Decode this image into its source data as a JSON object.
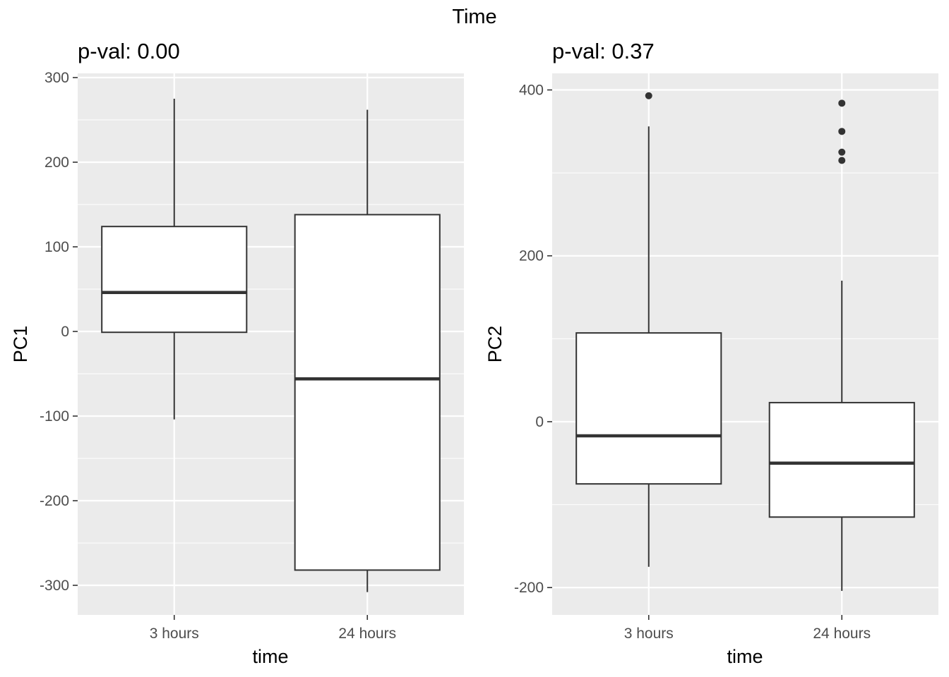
{
  "figure": {
    "title": "Time"
  },
  "chart_data": [
    {
      "type": "box",
      "title": "p-val: 0.00",
      "xlabel": "time",
      "ylabel": "PC1",
      "ylim": [
        -335,
        305
      ],
      "yticks": [
        300,
        200,
        100,
        0,
        -100,
        -200,
        -300
      ],
      "ytick_labels": [
        "300",
        "200",
        "100",
        "0",
        "-100",
        "-200",
        "-300"
      ],
      "categories": [
        "3 hours",
        "24 hours"
      ],
      "boxes": [
        {
          "min": -104,
          "q1": -1,
          "median": 46,
          "q3": 124,
          "max": 275,
          "outliers": []
        },
        {
          "min": -308,
          "q1": -282,
          "median": -56,
          "q3": 138,
          "max": 262,
          "outliers": []
        }
      ],
      "grid": true
    },
    {
      "type": "box",
      "title": "p-val: 0.37",
      "xlabel": "time",
      "ylabel": "PC2",
      "ylim": [
        -233,
        420
      ],
      "yticks": [
        400,
        200,
        0,
        -200
      ],
      "ytick_labels": [
        "400",
        "200",
        "0",
        "-200"
      ],
      "categories": [
        "3 hours",
        "24 hours"
      ],
      "boxes": [
        {
          "min": -175,
          "q1": -75,
          "median": -17,
          "q3": 107,
          "max": 356,
          "outliers": [
            393
          ]
        },
        {
          "min": -204,
          "q1": -115,
          "median": -50,
          "q3": 23,
          "max": 170,
          "outliers": [
            384,
            350,
            325,
            315
          ]
        }
      ],
      "grid": true
    }
  ],
  "colors": {
    "panel_bg": "#ebebeb",
    "grid": "#ffffff",
    "box_fill": "#ffffff",
    "box_line": "#333333",
    "tick_text": "#4d4d4d",
    "tick_mark": "#333333"
  }
}
